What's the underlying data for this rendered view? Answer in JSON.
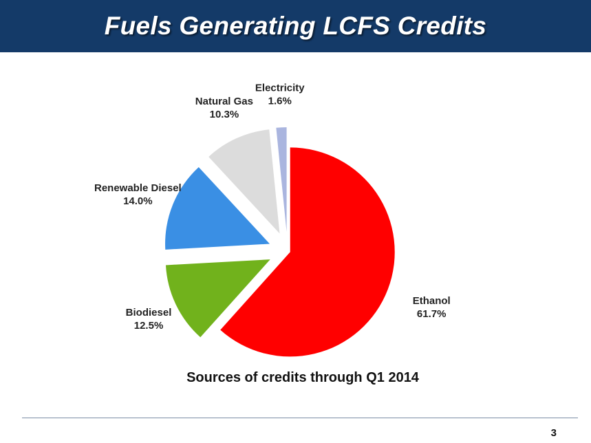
{
  "header": {
    "title": "Fuels Generating LCFS Credits",
    "background": "#143a68"
  },
  "chart_data": {
    "type": "pie",
    "title": "Fuels Generating LCFS Credits",
    "caption": "Sources of credits through Q1 2014",
    "exploded": true,
    "start": "12 o'clock, clockwise",
    "slices": [
      {
        "name": "Ethanol",
        "value": 61.7,
        "label": "61.7%",
        "color": "#ff0000"
      },
      {
        "name": "Biodiesel",
        "value": 12.5,
        "label": "12.5%",
        "color": "#71b21c"
      },
      {
        "name": "Renewable Diesel",
        "value": 14.0,
        "label": "14.0%",
        "color": "#3a8fe4"
      },
      {
        "name": "Natural Gas",
        "value": 10.3,
        "label": "10.3%",
        "color": "#dcdcdc"
      },
      {
        "name": "Electricity",
        "value": 1.6,
        "label": "1.6%",
        "color": "#aab5df"
      }
    ]
  },
  "footer": {
    "page_number": "3"
  }
}
